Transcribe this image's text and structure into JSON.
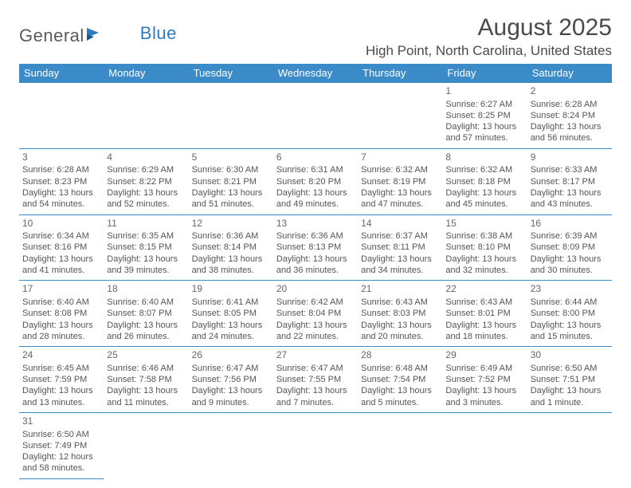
{
  "logo": {
    "part1": "General",
    "part2": "Blue"
  },
  "title": "August 2025",
  "location": "High Point, North Carolina, United States",
  "colors": {
    "header_bg": "#3b8bc9",
    "header_text": "#ffffff",
    "border": "#3b8bc9",
    "text": "#555555",
    "accent": "#2f7bbf"
  },
  "weekdays": [
    "Sunday",
    "Monday",
    "Tuesday",
    "Wednesday",
    "Thursday",
    "Friday",
    "Saturday"
  ],
  "weeks": [
    [
      null,
      null,
      null,
      null,
      null,
      {
        "n": "1",
        "sr": "Sunrise: 6:27 AM",
        "ss": "Sunset: 8:25 PM",
        "d1": "Daylight: 13 hours",
        "d2": "and 57 minutes."
      },
      {
        "n": "2",
        "sr": "Sunrise: 6:28 AM",
        "ss": "Sunset: 8:24 PM",
        "d1": "Daylight: 13 hours",
        "d2": "and 56 minutes."
      }
    ],
    [
      {
        "n": "3",
        "sr": "Sunrise: 6:28 AM",
        "ss": "Sunset: 8:23 PM",
        "d1": "Daylight: 13 hours",
        "d2": "and 54 minutes."
      },
      {
        "n": "4",
        "sr": "Sunrise: 6:29 AM",
        "ss": "Sunset: 8:22 PM",
        "d1": "Daylight: 13 hours",
        "d2": "and 52 minutes."
      },
      {
        "n": "5",
        "sr": "Sunrise: 6:30 AM",
        "ss": "Sunset: 8:21 PM",
        "d1": "Daylight: 13 hours",
        "d2": "and 51 minutes."
      },
      {
        "n": "6",
        "sr": "Sunrise: 6:31 AM",
        "ss": "Sunset: 8:20 PM",
        "d1": "Daylight: 13 hours",
        "d2": "and 49 minutes."
      },
      {
        "n": "7",
        "sr": "Sunrise: 6:32 AM",
        "ss": "Sunset: 8:19 PM",
        "d1": "Daylight: 13 hours",
        "d2": "and 47 minutes."
      },
      {
        "n": "8",
        "sr": "Sunrise: 6:32 AM",
        "ss": "Sunset: 8:18 PM",
        "d1": "Daylight: 13 hours",
        "d2": "and 45 minutes."
      },
      {
        "n": "9",
        "sr": "Sunrise: 6:33 AM",
        "ss": "Sunset: 8:17 PM",
        "d1": "Daylight: 13 hours",
        "d2": "and 43 minutes."
      }
    ],
    [
      {
        "n": "10",
        "sr": "Sunrise: 6:34 AM",
        "ss": "Sunset: 8:16 PM",
        "d1": "Daylight: 13 hours",
        "d2": "and 41 minutes."
      },
      {
        "n": "11",
        "sr": "Sunrise: 6:35 AM",
        "ss": "Sunset: 8:15 PM",
        "d1": "Daylight: 13 hours",
        "d2": "and 39 minutes."
      },
      {
        "n": "12",
        "sr": "Sunrise: 6:36 AM",
        "ss": "Sunset: 8:14 PM",
        "d1": "Daylight: 13 hours",
        "d2": "and 38 minutes."
      },
      {
        "n": "13",
        "sr": "Sunrise: 6:36 AM",
        "ss": "Sunset: 8:13 PM",
        "d1": "Daylight: 13 hours",
        "d2": "and 36 minutes."
      },
      {
        "n": "14",
        "sr": "Sunrise: 6:37 AM",
        "ss": "Sunset: 8:11 PM",
        "d1": "Daylight: 13 hours",
        "d2": "and 34 minutes."
      },
      {
        "n": "15",
        "sr": "Sunrise: 6:38 AM",
        "ss": "Sunset: 8:10 PM",
        "d1": "Daylight: 13 hours",
        "d2": "and 32 minutes."
      },
      {
        "n": "16",
        "sr": "Sunrise: 6:39 AM",
        "ss": "Sunset: 8:09 PM",
        "d1": "Daylight: 13 hours",
        "d2": "and 30 minutes."
      }
    ],
    [
      {
        "n": "17",
        "sr": "Sunrise: 6:40 AM",
        "ss": "Sunset: 8:08 PM",
        "d1": "Daylight: 13 hours",
        "d2": "and 28 minutes."
      },
      {
        "n": "18",
        "sr": "Sunrise: 6:40 AM",
        "ss": "Sunset: 8:07 PM",
        "d1": "Daylight: 13 hours",
        "d2": "and 26 minutes."
      },
      {
        "n": "19",
        "sr": "Sunrise: 6:41 AM",
        "ss": "Sunset: 8:05 PM",
        "d1": "Daylight: 13 hours",
        "d2": "and 24 minutes."
      },
      {
        "n": "20",
        "sr": "Sunrise: 6:42 AM",
        "ss": "Sunset: 8:04 PM",
        "d1": "Daylight: 13 hours",
        "d2": "and 22 minutes."
      },
      {
        "n": "21",
        "sr": "Sunrise: 6:43 AM",
        "ss": "Sunset: 8:03 PM",
        "d1": "Daylight: 13 hours",
        "d2": "and 20 minutes."
      },
      {
        "n": "22",
        "sr": "Sunrise: 6:43 AM",
        "ss": "Sunset: 8:01 PM",
        "d1": "Daylight: 13 hours",
        "d2": "and 18 minutes."
      },
      {
        "n": "23",
        "sr": "Sunrise: 6:44 AM",
        "ss": "Sunset: 8:00 PM",
        "d1": "Daylight: 13 hours",
        "d2": "and 15 minutes."
      }
    ],
    [
      {
        "n": "24",
        "sr": "Sunrise: 6:45 AM",
        "ss": "Sunset: 7:59 PM",
        "d1": "Daylight: 13 hours",
        "d2": "and 13 minutes."
      },
      {
        "n": "25",
        "sr": "Sunrise: 6:46 AM",
        "ss": "Sunset: 7:58 PM",
        "d1": "Daylight: 13 hours",
        "d2": "and 11 minutes."
      },
      {
        "n": "26",
        "sr": "Sunrise: 6:47 AM",
        "ss": "Sunset: 7:56 PM",
        "d1": "Daylight: 13 hours",
        "d2": "and 9 minutes."
      },
      {
        "n": "27",
        "sr": "Sunrise: 6:47 AM",
        "ss": "Sunset: 7:55 PM",
        "d1": "Daylight: 13 hours",
        "d2": "and 7 minutes."
      },
      {
        "n": "28",
        "sr": "Sunrise: 6:48 AM",
        "ss": "Sunset: 7:54 PM",
        "d1": "Daylight: 13 hours",
        "d2": "and 5 minutes."
      },
      {
        "n": "29",
        "sr": "Sunrise: 6:49 AM",
        "ss": "Sunset: 7:52 PM",
        "d1": "Daylight: 13 hours",
        "d2": "and 3 minutes."
      },
      {
        "n": "30",
        "sr": "Sunrise: 6:50 AM",
        "ss": "Sunset: 7:51 PM",
        "d1": "Daylight: 13 hours",
        "d2": "and 1 minute."
      }
    ],
    [
      {
        "n": "31",
        "sr": "Sunrise: 6:50 AM",
        "ss": "Sunset: 7:49 PM",
        "d1": "Daylight: 12 hours",
        "d2": "and 58 minutes."
      },
      null,
      null,
      null,
      null,
      null,
      null
    ]
  ]
}
